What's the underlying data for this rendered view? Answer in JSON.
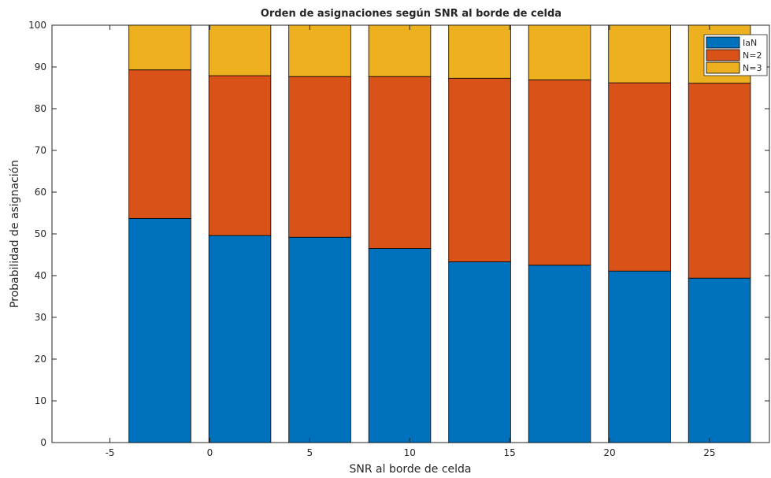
{
  "chart_data": {
    "type": "bar",
    "stacked": true,
    "title": "Orden de asignaciones según SNR al borde de celda",
    "xlabel": "SNR al borde de celda",
    "ylabel": "Probabilidad de asignación",
    "x_ticks": [
      "-5",
      "0",
      "5",
      "10",
      "15",
      "20",
      "25"
    ],
    "y_ticks": [
      "0",
      "10",
      "20",
      "30",
      "40",
      "50",
      "60",
      "70",
      "80",
      "90",
      "100"
    ],
    "xlim": [
      -7.9,
      28.0
    ],
    "ylim": [
      0,
      100
    ],
    "categories": [
      -2.5,
      1.5,
      5.5,
      9.5,
      13.5,
      17.5,
      21.5,
      25.5
    ],
    "series": [
      {
        "name": "IaN",
        "color": "#0072BD",
        "values": [
          53.7,
          49.6,
          49.2,
          46.5,
          43.3,
          42.5,
          41.1,
          39.4
        ]
      },
      {
        "name": "N=2",
        "color": "#D95319",
        "values": [
          35.6,
          38.3,
          38.5,
          41.2,
          44.0,
          44.4,
          45.1,
          46.7
        ]
      },
      {
        "name": "N=3",
        "color": "#EDB120",
        "values": [
          10.7,
          12.1,
          12.3,
          12.3,
          12.7,
          13.1,
          13.8,
          13.9
        ]
      }
    ],
    "legend_position": "top-right",
    "grid": false
  }
}
